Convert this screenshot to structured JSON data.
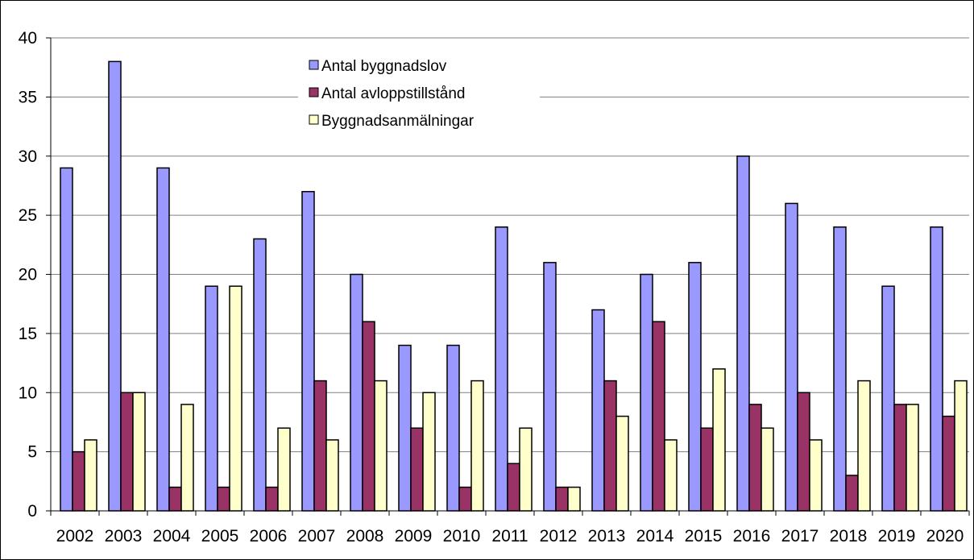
{
  "chart_data": {
    "type": "bar",
    "categories": [
      "2002",
      "2003",
      "2004",
      "2005",
      "2006",
      "2007",
      "2008",
      "2009",
      "2010",
      "2011",
      "2012",
      "2013",
      "2014",
      "2015",
      "2016",
      "2017",
      "2018",
      "2019",
      "2020"
    ],
    "series": [
      {
        "name": "Antal byggnadslov",
        "color": "#9999ff",
        "values": [
          29,
          38,
          29,
          19,
          23,
          27,
          20,
          14,
          14,
          24,
          21,
          17,
          20,
          21,
          30,
          26,
          24,
          19,
          24
        ]
      },
      {
        "name": "Antal avloppstillstånd",
        "color": "#993366",
        "values": [
          5,
          10,
          2,
          2,
          2,
          11,
          16,
          7,
          2,
          4,
          2,
          11,
          16,
          7,
          9,
          10,
          3,
          9,
          8
        ]
      },
      {
        "name": "Byggnadsanmälningar",
        "color": "#ffffcc",
        "values": [
          6,
          10,
          9,
          19,
          7,
          6,
          11,
          10,
          11,
          7,
          2,
          8,
          6,
          12,
          7,
          6,
          11,
          9,
          11
        ]
      }
    ],
    "ylim": [
      0,
      40
    ],
    "yticks": [
      "0",
      "5",
      "10",
      "15",
      "20",
      "25",
      "30",
      "35",
      "40"
    ],
    "grid": true,
    "legend_position": "top-center"
  }
}
